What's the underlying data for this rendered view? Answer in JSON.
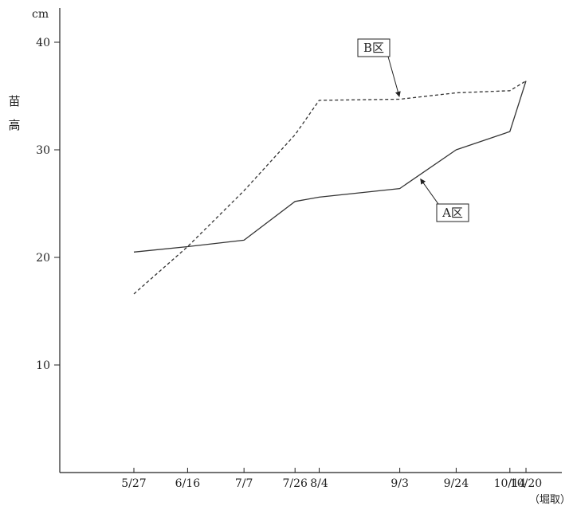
{
  "chart_data": {
    "type": "line",
    "x": [
      "5/27",
      "6/16",
      "7/7",
      "7/26",
      "8/4",
      "9/3",
      "9/24",
      "10/14",
      "10/20"
    ],
    "x_days": [
      0,
      20,
      41,
      60,
      69,
      99,
      120,
      140,
      146
    ],
    "x_note": "（堀取）",
    "ylabel": "苗高",
    "yunit": "cm",
    "ylim": [
      0,
      40
    ],
    "yticks": [
      10,
      20,
      30,
      40
    ],
    "grid": false,
    "series": [
      {
        "name": "A区",
        "style": "solid",
        "values": [
          20.5,
          21.0,
          21.6,
          25.2,
          25.6,
          26.4,
          30.0,
          31.7,
          36.4
        ]
      },
      {
        "name": "B区",
        "style": "dashed",
        "values": [
          16.6,
          21.0,
          26.2,
          31.4,
          34.6,
          34.7,
          35.3,
          35.5,
          36.4
        ]
      }
    ],
    "colors": {
      "line": "#333333",
      "text": "#222222"
    }
  }
}
